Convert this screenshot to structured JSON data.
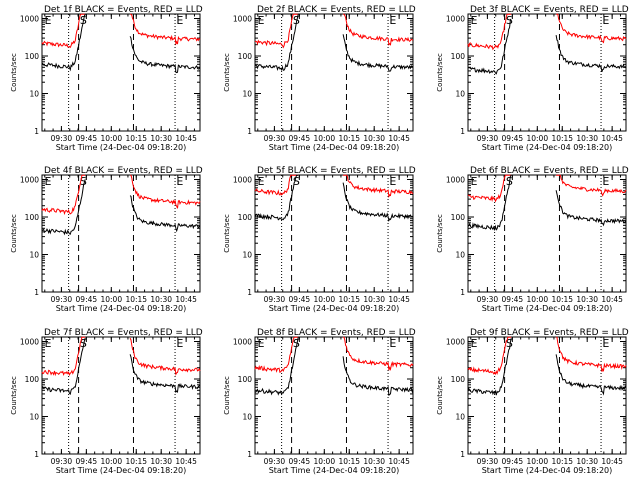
{
  "chart_data": {
    "type": "line",
    "y_scale": "log",
    "ylabel": "Counts/sec",
    "xlabel": "Start Time (24-Dec-04 09:18:20)",
    "y_tick_labels": [
      "1",
      "10",
      "100",
      "1000"
    ],
    "x_tick_labels": [
      "09:30",
      "09:45",
      "10:00",
      "10:15",
      "10:30",
      "10:45"
    ],
    "series_colors": {
      "events": "#000000",
      "lld": "#ff0000"
    },
    "markers": [
      "E",
      "S",
      "E"
    ],
    "panels": [
      {
        "title": "Det 1f BLACK = Events, RED = LLD",
        "lld_level": 270,
        "events_level": 48,
        "lld_pre": 220,
        "events_pre": 60
      },
      {
        "title": "Det 2f BLACK = Events, RED = LLD",
        "lld_level": 260,
        "events_level": 48,
        "lld_pre": 240,
        "events_pre": 55
      },
      {
        "title": "Det 3f BLACK = Events, RED = LLD",
        "lld_level": 280,
        "events_level": 50,
        "lld_pre": 200,
        "events_pre": 45
      },
      {
        "title": "Det 4f BLACK = Events, RED = LLD",
        "lld_level": 230,
        "events_level": 55,
        "lld_pre": 160,
        "events_pre": 45
      },
      {
        "title": "Det 5f BLACK = Events, RED = LLD",
        "lld_level": 450,
        "events_level": 100,
        "lld_pre": 500,
        "events_pre": 110
      },
      {
        "title": "Det 6f BLACK = Events, RED = LLD",
        "lld_level": 470,
        "events_level": 75,
        "lld_pre": 350,
        "events_pre": 60
      },
      {
        "title": "Det 7f BLACK = Events, RED = LLD",
        "lld_level": 170,
        "events_level": 60,
        "lld_pre": 160,
        "events_pre": 55
      },
      {
        "title": "Det 8f BLACK = Events, RED = LLD",
        "lld_level": 230,
        "events_level": 50,
        "lld_pre": 200,
        "events_pre": 50
      },
      {
        "title": "Det 9f BLACK = Events, RED = LLD",
        "lld_level": 210,
        "events_level": 55,
        "lld_pre": 180,
        "events_pre": 50
      }
    ]
  }
}
